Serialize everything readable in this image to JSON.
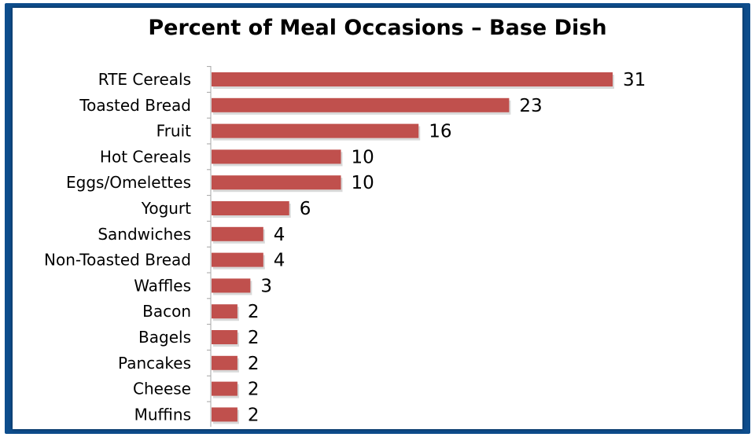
{
  "chart_data": {
    "type": "bar",
    "orientation": "horizontal",
    "title": "Percent of Meal Occasions  – Base Dish",
    "categories": [
      "RTE Cereals",
      "Toasted Bread",
      "Fruit",
      "Hot Cereals",
      "Eggs/Omelettes",
      "Yogurt",
      "Sandwiches",
      "Non-Toasted Bread",
      "Waffles",
      "Bacon",
      "Bagels",
      "Pancakes",
      "Cheese",
      "Muffins"
    ],
    "values": [
      31,
      23,
      16,
      10,
      10,
      6,
      4,
      4,
      3,
      2,
      2,
      2,
      2,
      2
    ],
    "xlim": [
      0,
      31
    ],
    "grid": false,
    "bar_color": "#c0504d",
    "frame_color": "#0e4d8c"
  }
}
